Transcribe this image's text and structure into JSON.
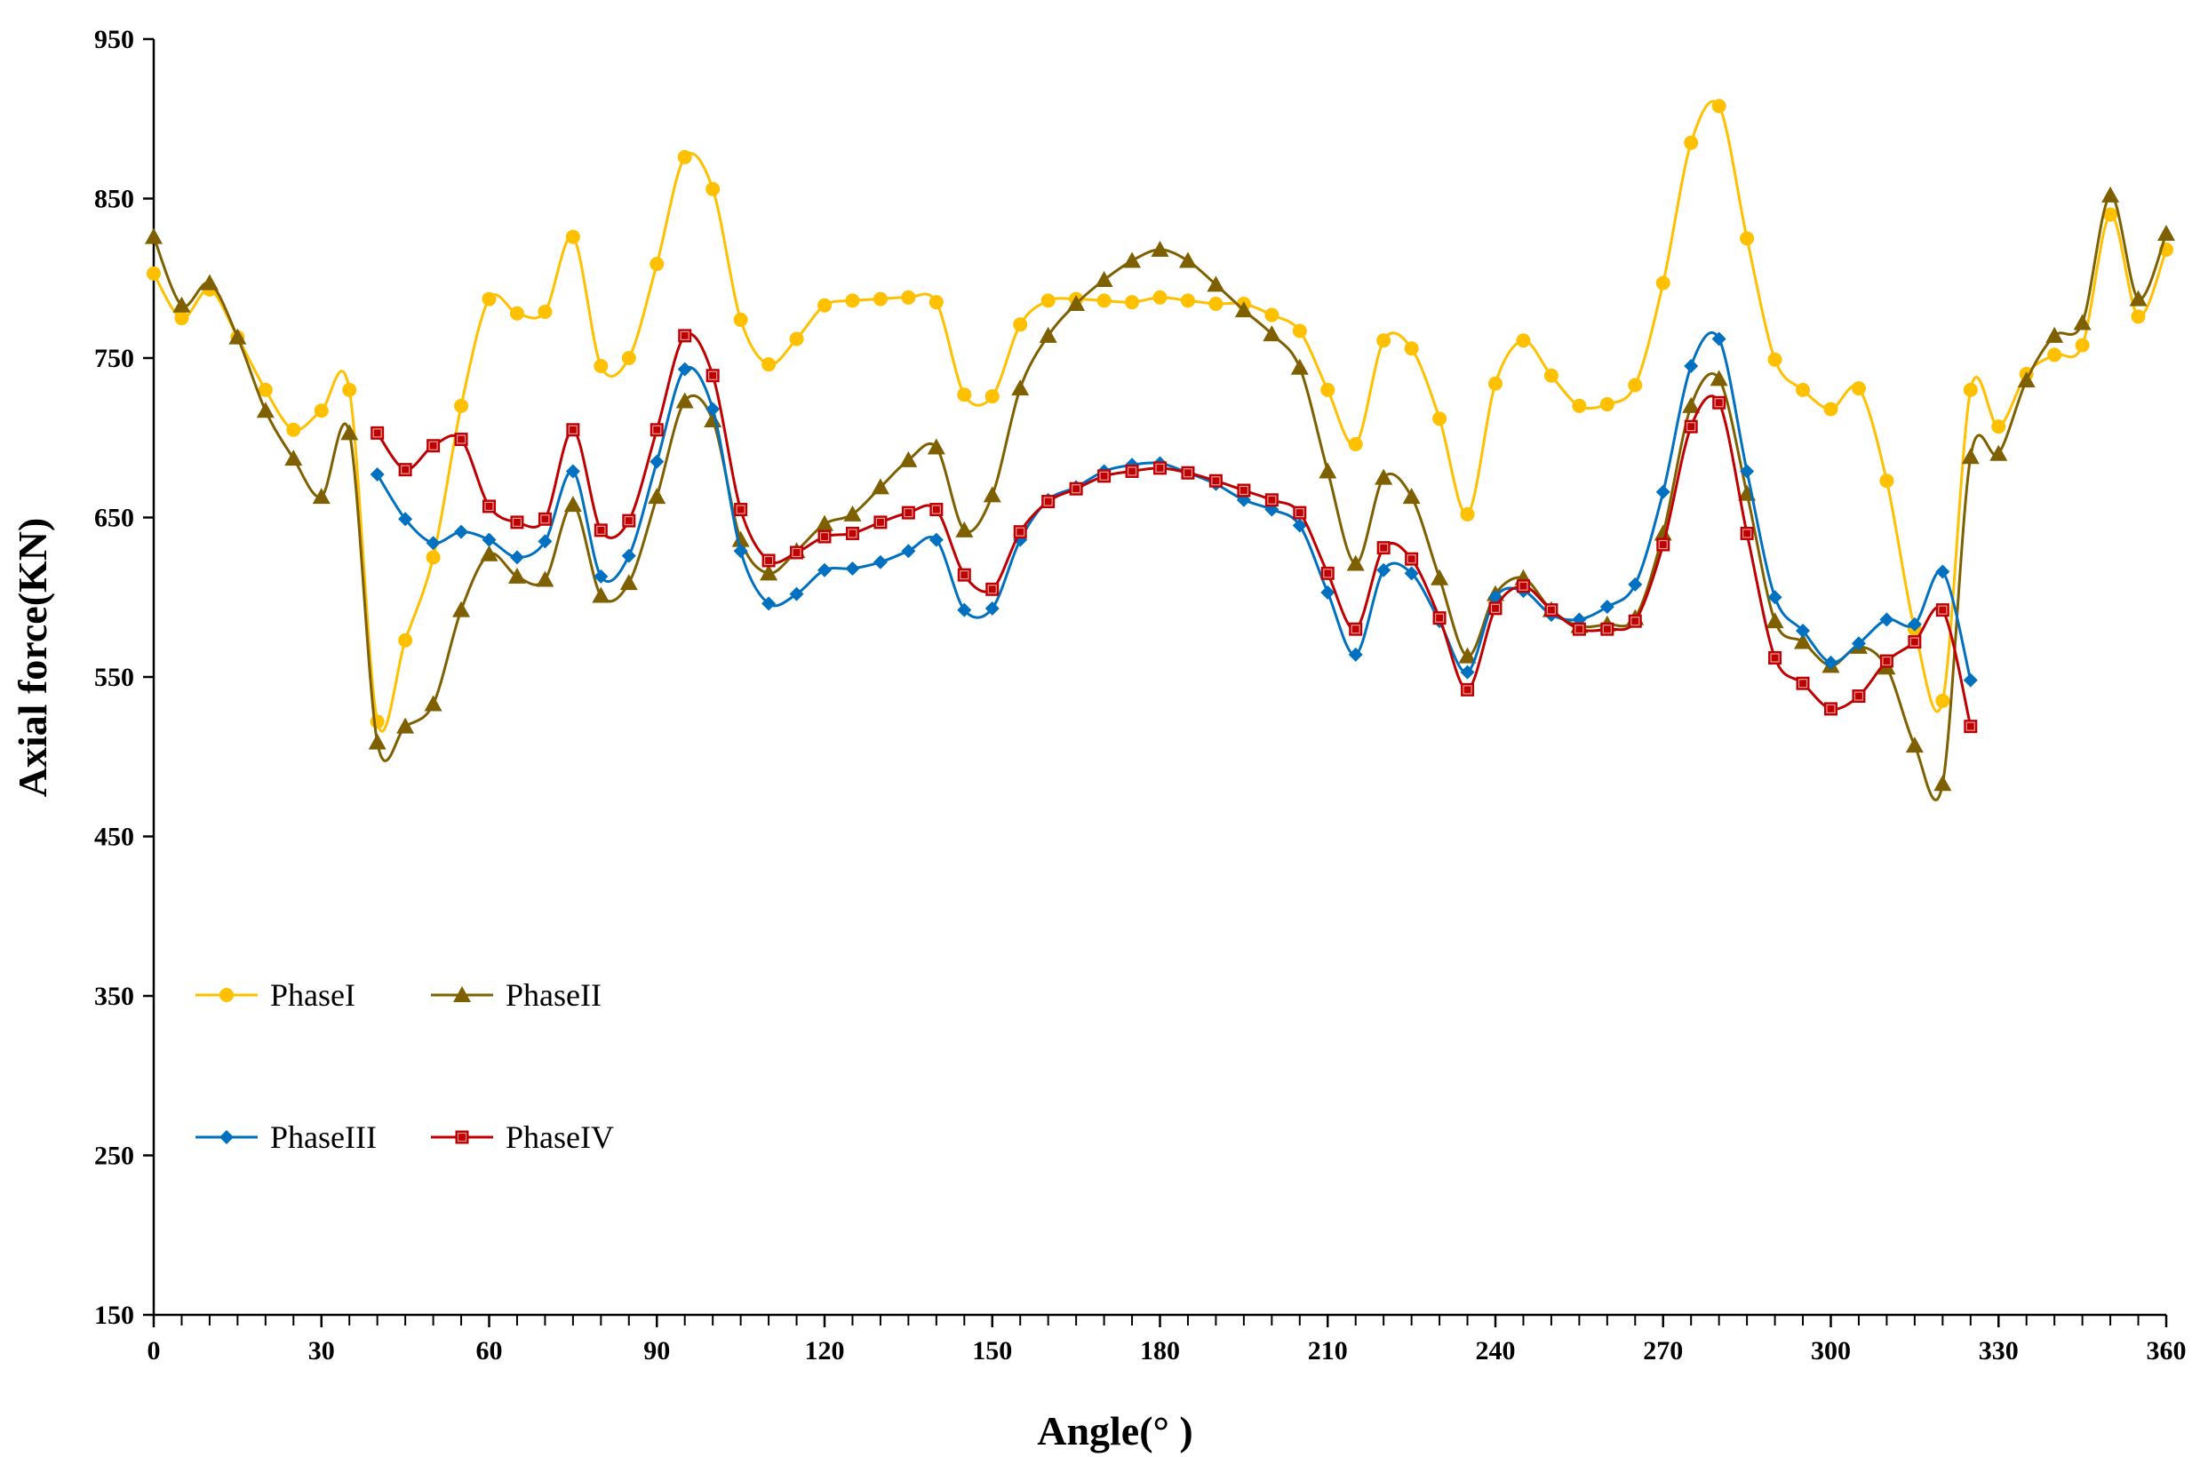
{
  "chart_data": {
    "type": "line",
    "title": "",
    "xlabel": "Angle(°  )",
    "ylabel": "Axial force(KN)",
    "xlim": [
      0,
      360
    ],
    "ylim": [
      150,
      950
    ],
    "xticks": [
      0,
      30,
      60,
      90,
      120,
      150,
      180,
      210,
      240,
      270,
      300,
      330,
      360
    ],
    "yticks": [
      150,
      250,
      350,
      450,
      550,
      650,
      750,
      850,
      950
    ],
    "minor_x_step": 5,
    "grid": false,
    "legend": "left-bottom",
    "series": [
      {
        "name": "PhaseI",
        "color": "#FFC000",
        "marker": "circle",
        "x": [
          0,
          5,
          10,
          15,
          20,
          25,
          30,
          35,
          40,
          45,
          50,
          55,
          60,
          65,
          70,
          75,
          80,
          85,
          90,
          95,
          100,
          105,
          110,
          115,
          120,
          125,
          130,
          135,
          140,
          145,
          150,
          155,
          160,
          165,
          170,
          175,
          180,
          185,
          190,
          195,
          200,
          205,
          210,
          215,
          220,
          225,
          230,
          235,
          240,
          245,
          250,
          255,
          260,
          265,
          270,
          275,
          280,
          285,
          290,
          295,
          300,
          305,
          310,
          315,
          320,
          325,
          330,
          335,
          340,
          345,
          350,
          355,
          360
        ],
        "y": [
          803,
          775,
          793,
          763,
          730,
          705,
          717,
          730,
          522,
          573,
          625,
          720,
          787,
          778,
          779,
          826,
          745,
          750,
          809,
          876,
          856,
          774,
          746,
          762,
          783,
          786,
          787,
          788,
          785,
          727,
          726,
          771,
          786,
          787,
          786,
          785,
          788,
          786,
          784,
          784,
          777,
          767,
          730,
          696,
          761,
          756,
          712,
          652,
          734,
          761,
          739,
          720,
          721,
          733,
          797,
          885,
          908,
          825,
          749,
          730,
          718,
          731,
          673,
          580,
          535,
          730,
          707,
          740,
          752,
          758,
          840,
          776,
          818
        ]
      },
      {
        "name": "PhaseII",
        "color": "#7F6000",
        "marker": "triangle",
        "x": [
          0,
          5,
          10,
          15,
          20,
          25,
          30,
          35,
          40,
          45,
          50,
          55,
          60,
          65,
          70,
          75,
          80,
          85,
          90,
          95,
          100,
          105,
          110,
          115,
          120,
          125,
          130,
          135,
          140,
          145,
          150,
          155,
          160,
          165,
          170,
          175,
          180,
          185,
          190,
          195,
          200,
          205,
          210,
          215,
          220,
          225,
          230,
          235,
          240,
          245,
          250,
          255,
          260,
          265,
          270,
          275,
          280,
          285,
          290,
          295,
          300,
          305,
          310,
          315,
          320,
          325,
          330,
          335,
          340,
          345,
          350,
          355,
          360
        ],
        "y": [
          826,
          783,
          797,
          763,
          717,
          687,
          663,
          703,
          509,
          519,
          533,
          592,
          627,
          613,
          611,
          658,
          601,
          609,
          663,
          723,
          711,
          636,
          615,
          629,
          646,
          652,
          669,
          686,
          694,
          642,
          664,
          731,
          764,
          784,
          799,
          811,
          818,
          811,
          796,
          780,
          765,
          744,
          679,
          621,
          675,
          663,
          612,
          563,
          602,
          612,
          592,
          582,
          583,
          587,
          640,
          720,
          737,
          665,
          585,
          572,
          557,
          569,
          556,
          507,
          483,
          688,
          690,
          736,
          764,
          772,
          852,
          787,
          828
        ]
      },
      {
        "name": "PhaseIII",
        "color": "#0070C0",
        "marker": "diamond",
        "x": [
          40,
          45,
          50,
          55,
          60,
          65,
          70,
          75,
          80,
          85,
          90,
          95,
          100,
          105,
          110,
          115,
          120,
          125,
          130,
          135,
          140,
          145,
          150,
          155,
          160,
          165,
          170,
          175,
          180,
          185,
          190,
          195,
          200,
          205,
          210,
          215,
          220,
          225,
          230,
          235,
          240,
          245,
          250,
          255,
          260,
          265,
          270,
          275,
          280,
          285,
          290,
          295,
          300,
          305,
          310,
          315,
          320,
          325
        ],
        "y": [
          677,
          649,
          634,
          641,
          636,
          625,
          635,
          679,
          613,
          626,
          685,
          743,
          718,
          629,
          596,
          602,
          617,
          618,
          622,
          629,
          636,
          592,
          593,
          636,
          661,
          669,
          679,
          683,
          684,
          678,
          671,
          661,
          655,
          645,
          603,
          564,
          617,
          615,
          585,
          553,
          600,
          604,
          589,
          586,
          594,
          608,
          666,
          745,
          762,
          679,
          600,
          579,
          559,
          571,
          586,
          583,
          616,
          548
        ]
      },
      {
        "name": "PhaseIV",
        "color": "#C00000",
        "marker": "square",
        "x": [
          40,
          45,
          50,
          55,
          60,
          65,
          70,
          75,
          80,
          85,
          90,
          95,
          100,
          105,
          110,
          115,
          120,
          125,
          130,
          135,
          140,
          145,
          150,
          155,
          160,
          165,
          170,
          175,
          180,
          185,
          190,
          195,
          200,
          205,
          210,
          215,
          220,
          225,
          230,
          235,
          240,
          245,
          250,
          255,
          260,
          265,
          270,
          275,
          280,
          285,
          290,
          295,
          300,
          305,
          310,
          315,
          320,
          325
        ],
        "y": [
          703,
          680,
          695,
          699,
          657,
          647,
          649,
          705,
          642,
          648,
          705,
          764,
          739,
          655,
          623,
          628,
          638,
          640,
          647,
          653,
          655,
          614,
          605,
          641,
          660,
          668,
          676,
          679,
          681,
          678,
          673,
          667,
          661,
          653,
          615,
          580,
          631,
          624,
          587,
          542,
          593,
          607,
          592,
          580,
          580,
          585,
          633,
          707,
          722,
          640,
          562,
          546,
          530,
          538,
          560,
          572,
          592,
          519
        ]
      }
    ],
    "legend_rows": [
      [
        "PhaseI",
        "PhaseII"
      ],
      [
        "PhaseIII",
        "PhaseIV"
      ]
    ]
  }
}
